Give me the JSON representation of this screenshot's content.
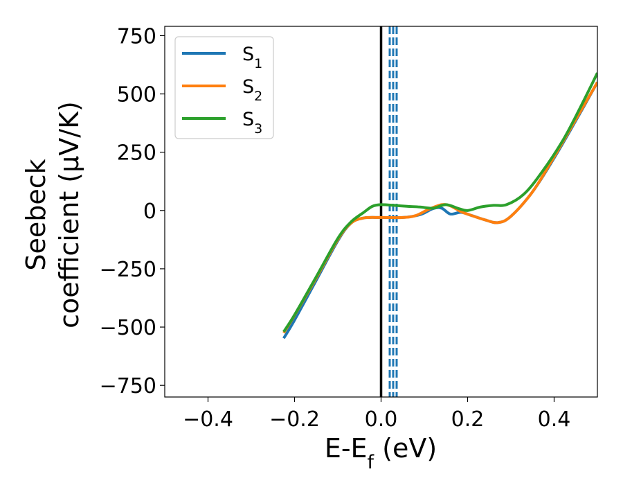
{
  "chart_data": {
    "type": "line",
    "xlabel": {
      "main": "E-E",
      "sub": "f",
      "unit": " (eV)"
    },
    "ylabel": {
      "line1": "Seebeck",
      "line2": "coefficient  (μV/K)"
    },
    "xlim": [
      -0.5,
      0.5
    ],
    "ylim": [
      -800,
      790
    ],
    "xticks": [
      -0.4,
      -0.2,
      0.0,
      0.2,
      0.4
    ],
    "xtick_labels": [
      "−0.4",
      "−0.2",
      "0.0",
      "0.2",
      "0.4"
    ],
    "yticks": [
      750,
      500,
      250,
      0,
      -250,
      -500,
      -750
    ],
    "ytick_labels": [
      "750",
      "500",
      "250",
      "0",
      "−250",
      "−500",
      "−750"
    ],
    "grid": false,
    "legend_position": "top-left",
    "reference_lines": {
      "solid_black_x": 0.0,
      "dashed_blue_x": [
        0.02,
        0.028,
        0.036
      ]
    },
    "series": [
      {
        "name": "S1",
        "label_main": "S",
        "label_sub": "1",
        "color": "#1f77b4",
        "points": [
          [
            -0.225,
            -548
          ],
          [
            -0.2,
            -470
          ],
          [
            -0.15,
            -300
          ],
          [
            -0.1,
            -130
          ],
          [
            -0.07,
            -55
          ],
          [
            -0.04,
            -32
          ],
          [
            0.0,
            -30
          ],
          [
            0.05,
            -30
          ],
          [
            0.09,
            -18
          ],
          [
            0.12,
            8
          ],
          [
            0.14,
            10
          ],
          [
            0.16,
            -15
          ],
          [
            0.185,
            -8
          ],
          [
            0.21,
            -22
          ],
          [
            0.24,
            -40
          ],
          [
            0.27,
            -52
          ],
          [
            0.3,
            -25
          ],
          [
            0.35,
            80
          ],
          [
            0.4,
            225
          ],
          [
            0.45,
            385
          ],
          [
            0.5,
            550
          ]
        ]
      },
      {
        "name": "S2",
        "label_main": "S",
        "label_sub": "2",
        "color": "#ff7f0e",
        "points": [
          [
            -0.225,
            -525
          ],
          [
            -0.2,
            -450
          ],
          [
            -0.15,
            -290
          ],
          [
            -0.1,
            -125
          ],
          [
            -0.07,
            -55
          ],
          [
            -0.04,
            -32
          ],
          [
            0.0,
            -30
          ],
          [
            0.05,
            -30
          ],
          [
            0.08,
            -22
          ],
          [
            0.11,
            5
          ],
          [
            0.14,
            25
          ],
          [
            0.16,
            20
          ],
          [
            0.185,
            -5
          ],
          [
            0.21,
            -22
          ],
          [
            0.24,
            -40
          ],
          [
            0.27,
            -52
          ],
          [
            0.3,
            -25
          ],
          [
            0.35,
            80
          ],
          [
            0.4,
            230
          ],
          [
            0.45,
            390
          ],
          [
            0.5,
            550
          ]
        ]
      },
      {
        "name": "S3",
        "label_main": "S",
        "label_sub": "3",
        "color": "#2ca02c",
        "points": [
          [
            -0.225,
            -520
          ],
          [
            -0.2,
            -448
          ],
          [
            -0.15,
            -285
          ],
          [
            -0.1,
            -120
          ],
          [
            -0.07,
            -50
          ],
          [
            -0.04,
            -8
          ],
          [
            -0.02,
            18
          ],
          [
            0.0,
            25
          ],
          [
            0.03,
            22
          ],
          [
            0.06,
            18
          ],
          [
            0.09,
            15
          ],
          [
            0.12,
            10
          ],
          [
            0.15,
            25
          ],
          [
            0.18,
            8
          ],
          [
            0.2,
            0
          ],
          [
            0.23,
            15
          ],
          [
            0.26,
            22
          ],
          [
            0.29,
            25
          ],
          [
            0.33,
            70
          ],
          [
            0.37,
            160
          ],
          [
            0.42,
            300
          ],
          [
            0.46,
            440
          ],
          [
            0.5,
            590
          ]
        ]
      }
    ]
  }
}
